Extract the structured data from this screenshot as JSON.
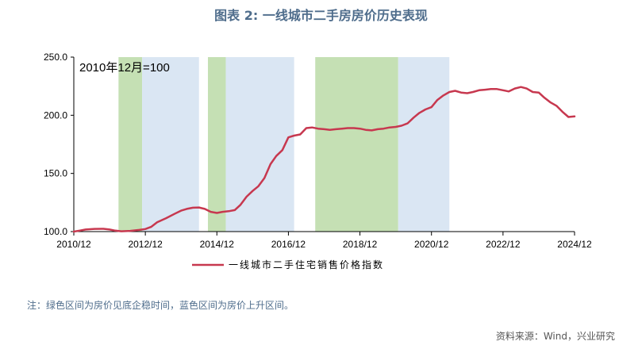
{
  "header": {
    "title": "图表 2:   一线城市二手房房价历史表现"
  },
  "footer": {
    "note": "注：绿色区间为房价见底企稳时间，蓝色区间为房价上升区间。",
    "source": "资料来源：Wind，兴业研究"
  },
  "colors": {
    "line": "#c7384f",
    "green_band": "#c5e0b4",
    "blue_band": "#dae6f3"
  },
  "chart_data": {
    "type": "line",
    "annotation": "2010年12月=100",
    "xlim": [
      2010.92,
      2024.92
    ],
    "ylim": [
      100,
      250
    ],
    "x_ticks": [
      {
        "label": "2010/12",
        "value": 2010.92
      },
      {
        "label": "2012/12",
        "value": 2012.92
      },
      {
        "label": "2014/12",
        "value": 2014.92
      },
      {
        "label": "2016/12",
        "value": 2016.92
      },
      {
        "label": "2018/12",
        "value": 2018.92
      },
      {
        "label": "2020/12",
        "value": 2020.92
      },
      {
        "label": "2022/12",
        "value": 2022.92
      },
      {
        "label": "2024/12",
        "value": 2024.92
      }
    ],
    "y_ticks": [
      {
        "label": "100.0",
        "value": 100
      },
      {
        "label": "150.0",
        "value": 150
      },
      {
        "label": "200.0",
        "value": 200
      },
      {
        "label": "250.0",
        "value": 250
      }
    ],
    "bands": [
      {
        "type": "green",
        "start": 2012.17,
        "end": 2012.83
      },
      {
        "type": "blue",
        "start": 2012.83,
        "end": 2014.42
      },
      {
        "type": "green",
        "start": 2014.67,
        "end": 2015.17
      },
      {
        "type": "blue",
        "start": 2015.17,
        "end": 2017.08
      },
      {
        "type": "green",
        "start": 2017.67,
        "end": 2019.99
      },
      {
        "type": "blue",
        "start": 2019.99,
        "end": 2021.42
      }
    ],
    "series": [
      {
        "name": "一线城市二手住宅销售价格指数",
        "points": [
          [
            2010.92,
            100
          ],
          [
            2011.08,
            100.8
          ],
          [
            2011.25,
            101.8
          ],
          [
            2011.5,
            102.3
          ],
          [
            2011.75,
            102.4
          ],
          [
            2011.92,
            101.8
          ],
          [
            2012.08,
            100.8
          ],
          [
            2012.25,
            100.3
          ],
          [
            2012.5,
            100.6
          ],
          [
            2012.75,
            101.4
          ],
          [
            2012.92,
            102.2
          ],
          [
            2013.08,
            104
          ],
          [
            2013.25,
            108
          ],
          [
            2013.5,
            111.5
          ],
          [
            2013.75,
            115.5
          ],
          [
            2013.92,
            118
          ],
          [
            2014.08,
            119.5
          ],
          [
            2014.25,
            120.5
          ],
          [
            2014.42,
            120.7
          ],
          [
            2014.58,
            119.5
          ],
          [
            2014.75,
            117
          ],
          [
            2014.92,
            116
          ],
          [
            2015.08,
            117
          ],
          [
            2015.25,
            117.5
          ],
          [
            2015.42,
            118.5
          ],
          [
            2015.58,
            123
          ],
          [
            2015.75,
            130
          ],
          [
            2015.92,
            135
          ],
          [
            2016.08,
            139
          ],
          [
            2016.25,
            146
          ],
          [
            2016.42,
            158
          ],
          [
            2016.58,
            165
          ],
          [
            2016.75,
            170
          ],
          [
            2016.92,
            181
          ],
          [
            2017.08,
            182.5
          ],
          [
            2017.25,
            183.5
          ],
          [
            2017.42,
            189
          ],
          [
            2017.58,
            189.5
          ],
          [
            2017.75,
            188.5
          ],
          [
            2017.92,
            188
          ],
          [
            2018.08,
            187.5
          ],
          [
            2018.25,
            188
          ],
          [
            2018.42,
            188.5
          ],
          [
            2018.58,
            189
          ],
          [
            2018.75,
            189
          ],
          [
            2018.92,
            188.5
          ],
          [
            2019.08,
            187.5
          ],
          [
            2019.25,
            187
          ],
          [
            2019.42,
            188
          ],
          [
            2019.58,
            188.5
          ],
          [
            2019.75,
            189.5
          ],
          [
            2019.92,
            190
          ],
          [
            2020.08,
            191
          ],
          [
            2020.25,
            193
          ],
          [
            2020.42,
            198
          ],
          [
            2020.58,
            202
          ],
          [
            2020.75,
            205
          ],
          [
            2020.92,
            207
          ],
          [
            2021.08,
            213
          ],
          [
            2021.25,
            217
          ],
          [
            2021.42,
            220
          ],
          [
            2021.58,
            221
          ],
          [
            2021.75,
            219.5
          ],
          [
            2021.92,
            219
          ],
          [
            2022.08,
            220
          ],
          [
            2022.25,
            221.5
          ],
          [
            2022.42,
            222
          ],
          [
            2022.58,
            222.5
          ],
          [
            2022.75,
            222.5
          ],
          [
            2022.92,
            221.5
          ],
          [
            2023.08,
            220.5
          ],
          [
            2023.25,
            223
          ],
          [
            2023.42,
            224.3
          ],
          [
            2023.58,
            223
          ],
          [
            2023.75,
            220
          ],
          [
            2023.92,
            219.5
          ],
          [
            2024.08,
            215
          ],
          [
            2024.25,
            211
          ],
          [
            2024.42,
            208
          ],
          [
            2024.58,
            203
          ],
          [
            2024.75,
            198.5
          ],
          [
            2024.92,
            199
          ]
        ]
      }
    ]
  }
}
